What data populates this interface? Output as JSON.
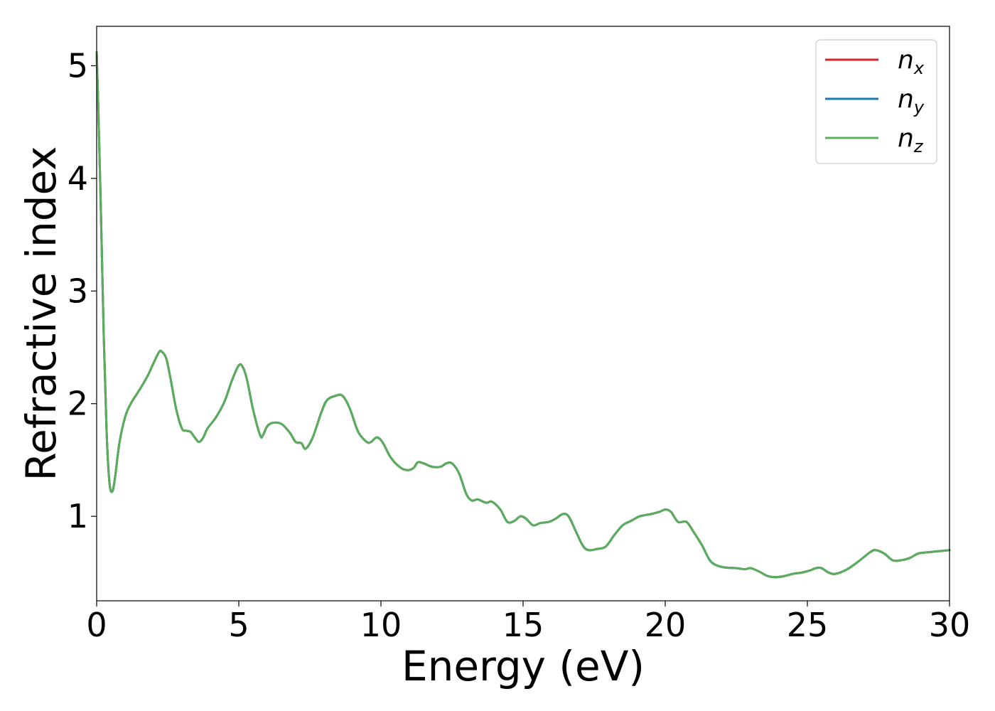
{
  "chart_data": {
    "type": "line",
    "xlabel": "Energy (eV)",
    "ylabel": "Refractive index",
    "xlim": [
      0,
      30
    ],
    "ylim": [
      0.25,
      5.35
    ],
    "grid": false,
    "legend_placement": "top-right",
    "x_ticks": [
      "0",
      "5",
      "10",
      "15",
      "20",
      "25",
      "30"
    ],
    "y_ticks": [
      "1",
      "2",
      "3",
      "4",
      "5"
    ],
    "x": [
      0.0,
      0.05,
      0.15,
      0.25,
      0.35,
      0.45,
      0.55,
      0.65,
      0.8,
      1.0,
      1.2,
      1.5,
      1.8,
      2.0,
      2.2,
      2.3,
      2.45,
      2.6,
      2.8,
      3.0,
      3.15,
      3.3,
      3.45,
      3.6,
      3.75,
      3.9,
      4.2,
      4.5,
      4.75,
      5.0,
      5.15,
      5.3,
      5.5,
      5.75,
      5.85,
      6.0,
      6.2,
      6.5,
      6.8,
      7.0,
      7.2,
      7.35,
      7.6,
      7.9,
      8.1,
      8.4,
      8.65,
      8.9,
      9.2,
      9.5,
      9.65,
      9.85,
      10.05,
      10.35,
      10.7,
      10.95,
      11.15,
      11.3,
      11.5,
      11.8,
      12.1,
      12.3,
      12.5,
      12.75,
      13.0,
      13.2,
      13.4,
      13.7,
      13.9,
      14.2,
      14.45,
      14.7,
      14.9,
      15.1,
      15.35,
      15.6,
      15.9,
      16.15,
      16.4,
      16.6,
      16.85,
      17.1,
      17.3,
      17.6,
      17.9,
      18.2,
      18.5,
      18.8,
      19.1,
      19.5,
      19.8,
      20.0,
      20.2,
      20.45,
      20.75,
      21.0,
      21.3,
      21.6,
      22.0,
      22.5,
      22.8,
      23.0,
      23.3,
      23.6,
      23.9,
      24.2,
      24.5,
      24.8,
      25.1,
      25.3,
      25.5,
      25.75,
      26.0,
      26.4,
      26.8,
      27.2,
      27.4,
      27.7,
      28.0,
      28.3,
      28.6,
      28.9,
      29.2,
      29.6,
      30.0
    ],
    "series": [
      {
        "name": "n_x",
        "label_base": "n",
        "label_sub": "x",
        "color": "#d62728",
        "values": [
          5.12,
          4.7,
          3.7,
          2.6,
          1.75,
          1.3,
          1.22,
          1.35,
          1.65,
          1.88,
          2.0,
          2.12,
          2.25,
          2.36,
          2.46,
          2.46,
          2.4,
          2.22,
          1.95,
          1.78,
          1.76,
          1.75,
          1.7,
          1.66,
          1.7,
          1.78,
          1.88,
          2.02,
          2.2,
          2.34,
          2.32,
          2.2,
          1.95,
          1.72,
          1.72,
          1.8,
          1.83,
          1.82,
          1.74,
          1.66,
          1.65,
          1.6,
          1.7,
          1.92,
          2.03,
          2.07,
          2.07,
          1.96,
          1.75,
          1.66,
          1.66,
          1.7,
          1.66,
          1.52,
          1.43,
          1.41,
          1.43,
          1.48,
          1.47,
          1.44,
          1.44,
          1.47,
          1.47,
          1.38,
          1.2,
          1.14,
          1.15,
          1.12,
          1.13,
          1.06,
          0.95,
          0.96,
          1.0,
          0.98,
          0.92,
          0.94,
          0.95,
          0.98,
          1.02,
          1.0,
          0.87,
          0.74,
          0.7,
          0.71,
          0.73,
          0.83,
          0.92,
          0.96,
          1.0,
          1.02,
          1.04,
          1.06,
          1.04,
          0.95,
          0.95,
          0.86,
          0.74,
          0.6,
          0.55,
          0.54,
          0.53,
          0.54,
          0.51,
          0.47,
          0.46,
          0.47,
          0.49,
          0.5,
          0.52,
          0.54,
          0.54,
          0.5,
          0.49,
          0.53,
          0.6,
          0.68,
          0.7,
          0.67,
          0.61,
          0.61,
          0.63,
          0.67,
          0.68,
          0.69,
          0.7
        ]
      },
      {
        "name": "n_y",
        "label_base": "n",
        "label_sub": "y",
        "color": "#1f77b4",
        "values": [
          5.12,
          4.7,
          3.7,
          2.6,
          1.75,
          1.3,
          1.22,
          1.35,
          1.65,
          1.88,
          2.0,
          2.12,
          2.25,
          2.36,
          2.46,
          2.46,
          2.4,
          2.22,
          1.95,
          1.78,
          1.76,
          1.75,
          1.7,
          1.66,
          1.7,
          1.78,
          1.88,
          2.02,
          2.2,
          2.34,
          2.32,
          2.2,
          1.95,
          1.72,
          1.72,
          1.8,
          1.83,
          1.82,
          1.74,
          1.66,
          1.65,
          1.6,
          1.7,
          1.92,
          2.03,
          2.07,
          2.07,
          1.96,
          1.75,
          1.66,
          1.66,
          1.7,
          1.66,
          1.52,
          1.43,
          1.41,
          1.43,
          1.48,
          1.47,
          1.44,
          1.44,
          1.47,
          1.47,
          1.38,
          1.2,
          1.14,
          1.15,
          1.12,
          1.13,
          1.06,
          0.95,
          0.96,
          1.0,
          0.98,
          0.92,
          0.94,
          0.95,
          0.98,
          1.02,
          1.0,
          0.87,
          0.74,
          0.7,
          0.71,
          0.73,
          0.83,
          0.92,
          0.96,
          1.0,
          1.02,
          1.04,
          1.06,
          1.04,
          0.95,
          0.95,
          0.86,
          0.74,
          0.6,
          0.55,
          0.54,
          0.53,
          0.54,
          0.51,
          0.47,
          0.46,
          0.47,
          0.49,
          0.5,
          0.52,
          0.54,
          0.54,
          0.5,
          0.49,
          0.53,
          0.6,
          0.68,
          0.7,
          0.67,
          0.61,
          0.61,
          0.63,
          0.67,
          0.68,
          0.69,
          0.7
        ]
      },
      {
        "name": "n_z",
        "label_base": "n",
        "label_sub": "z",
        "color": "#5aad5a",
        "values": [
          5.12,
          4.7,
          3.7,
          2.6,
          1.75,
          1.3,
          1.22,
          1.35,
          1.65,
          1.88,
          2.0,
          2.12,
          2.25,
          2.36,
          2.46,
          2.46,
          2.4,
          2.22,
          1.95,
          1.78,
          1.76,
          1.75,
          1.7,
          1.66,
          1.7,
          1.78,
          1.88,
          2.02,
          2.2,
          2.34,
          2.32,
          2.2,
          1.95,
          1.72,
          1.72,
          1.8,
          1.83,
          1.82,
          1.74,
          1.66,
          1.65,
          1.6,
          1.7,
          1.92,
          2.03,
          2.07,
          2.07,
          1.96,
          1.75,
          1.66,
          1.66,
          1.7,
          1.66,
          1.52,
          1.43,
          1.41,
          1.43,
          1.48,
          1.47,
          1.44,
          1.44,
          1.47,
          1.47,
          1.38,
          1.2,
          1.14,
          1.15,
          1.12,
          1.13,
          1.06,
          0.95,
          0.96,
          1.0,
          0.98,
          0.92,
          0.94,
          0.95,
          0.98,
          1.02,
          1.0,
          0.87,
          0.74,
          0.7,
          0.71,
          0.73,
          0.83,
          0.92,
          0.96,
          1.0,
          1.02,
          1.04,
          1.06,
          1.04,
          0.95,
          0.95,
          0.86,
          0.74,
          0.6,
          0.55,
          0.54,
          0.53,
          0.54,
          0.51,
          0.47,
          0.46,
          0.47,
          0.49,
          0.5,
          0.52,
          0.54,
          0.54,
          0.5,
          0.49,
          0.53,
          0.6,
          0.68,
          0.7,
          0.67,
          0.61,
          0.61,
          0.63,
          0.67,
          0.68,
          0.69,
          0.7
        ]
      }
    ]
  }
}
